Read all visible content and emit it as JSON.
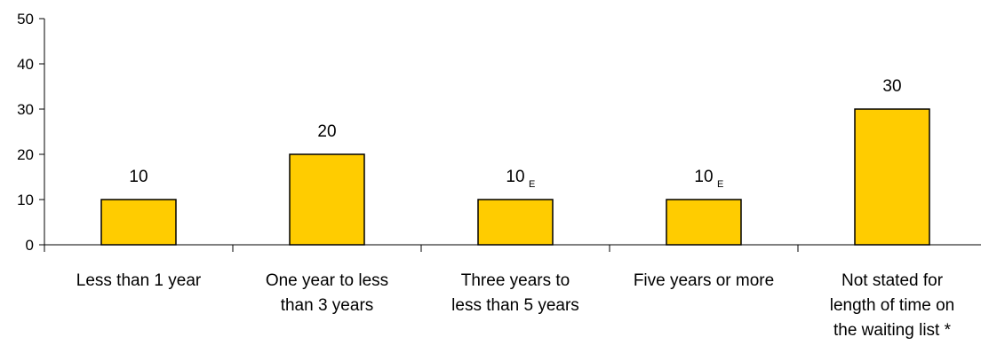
{
  "colors": {
    "bar_fill": "#FFCC00",
    "bar_stroke": "#000000",
    "axis": "#000000"
  },
  "chart_data": {
    "type": "bar",
    "categories": [
      [
        "Less than 1 year"
      ],
      [
        "One year to less",
        "than 3 years"
      ],
      [
        "Three years to",
        "less than 5 years"
      ],
      [
        "Five years or more"
      ],
      [
        "Not stated for",
        "length of time on",
        "the waiting list *"
      ]
    ],
    "values": [
      10,
      20,
      10,
      10,
      30
    ],
    "data_labels": [
      {
        "text": "10",
        "flag": ""
      },
      {
        "text": "20",
        "flag": ""
      },
      {
        "text": "10",
        "flag": "E"
      },
      {
        "text": "10",
        "flag": "E"
      },
      {
        "text": "30",
        "flag": ""
      }
    ],
    "yticks": [
      "0",
      "10",
      "20",
      "30",
      "40",
      "50"
    ],
    "ylim": [
      0,
      50
    ],
    "grid": false,
    "legend": "none",
    "title": "",
    "xlabel": "",
    "ylabel": ""
  }
}
